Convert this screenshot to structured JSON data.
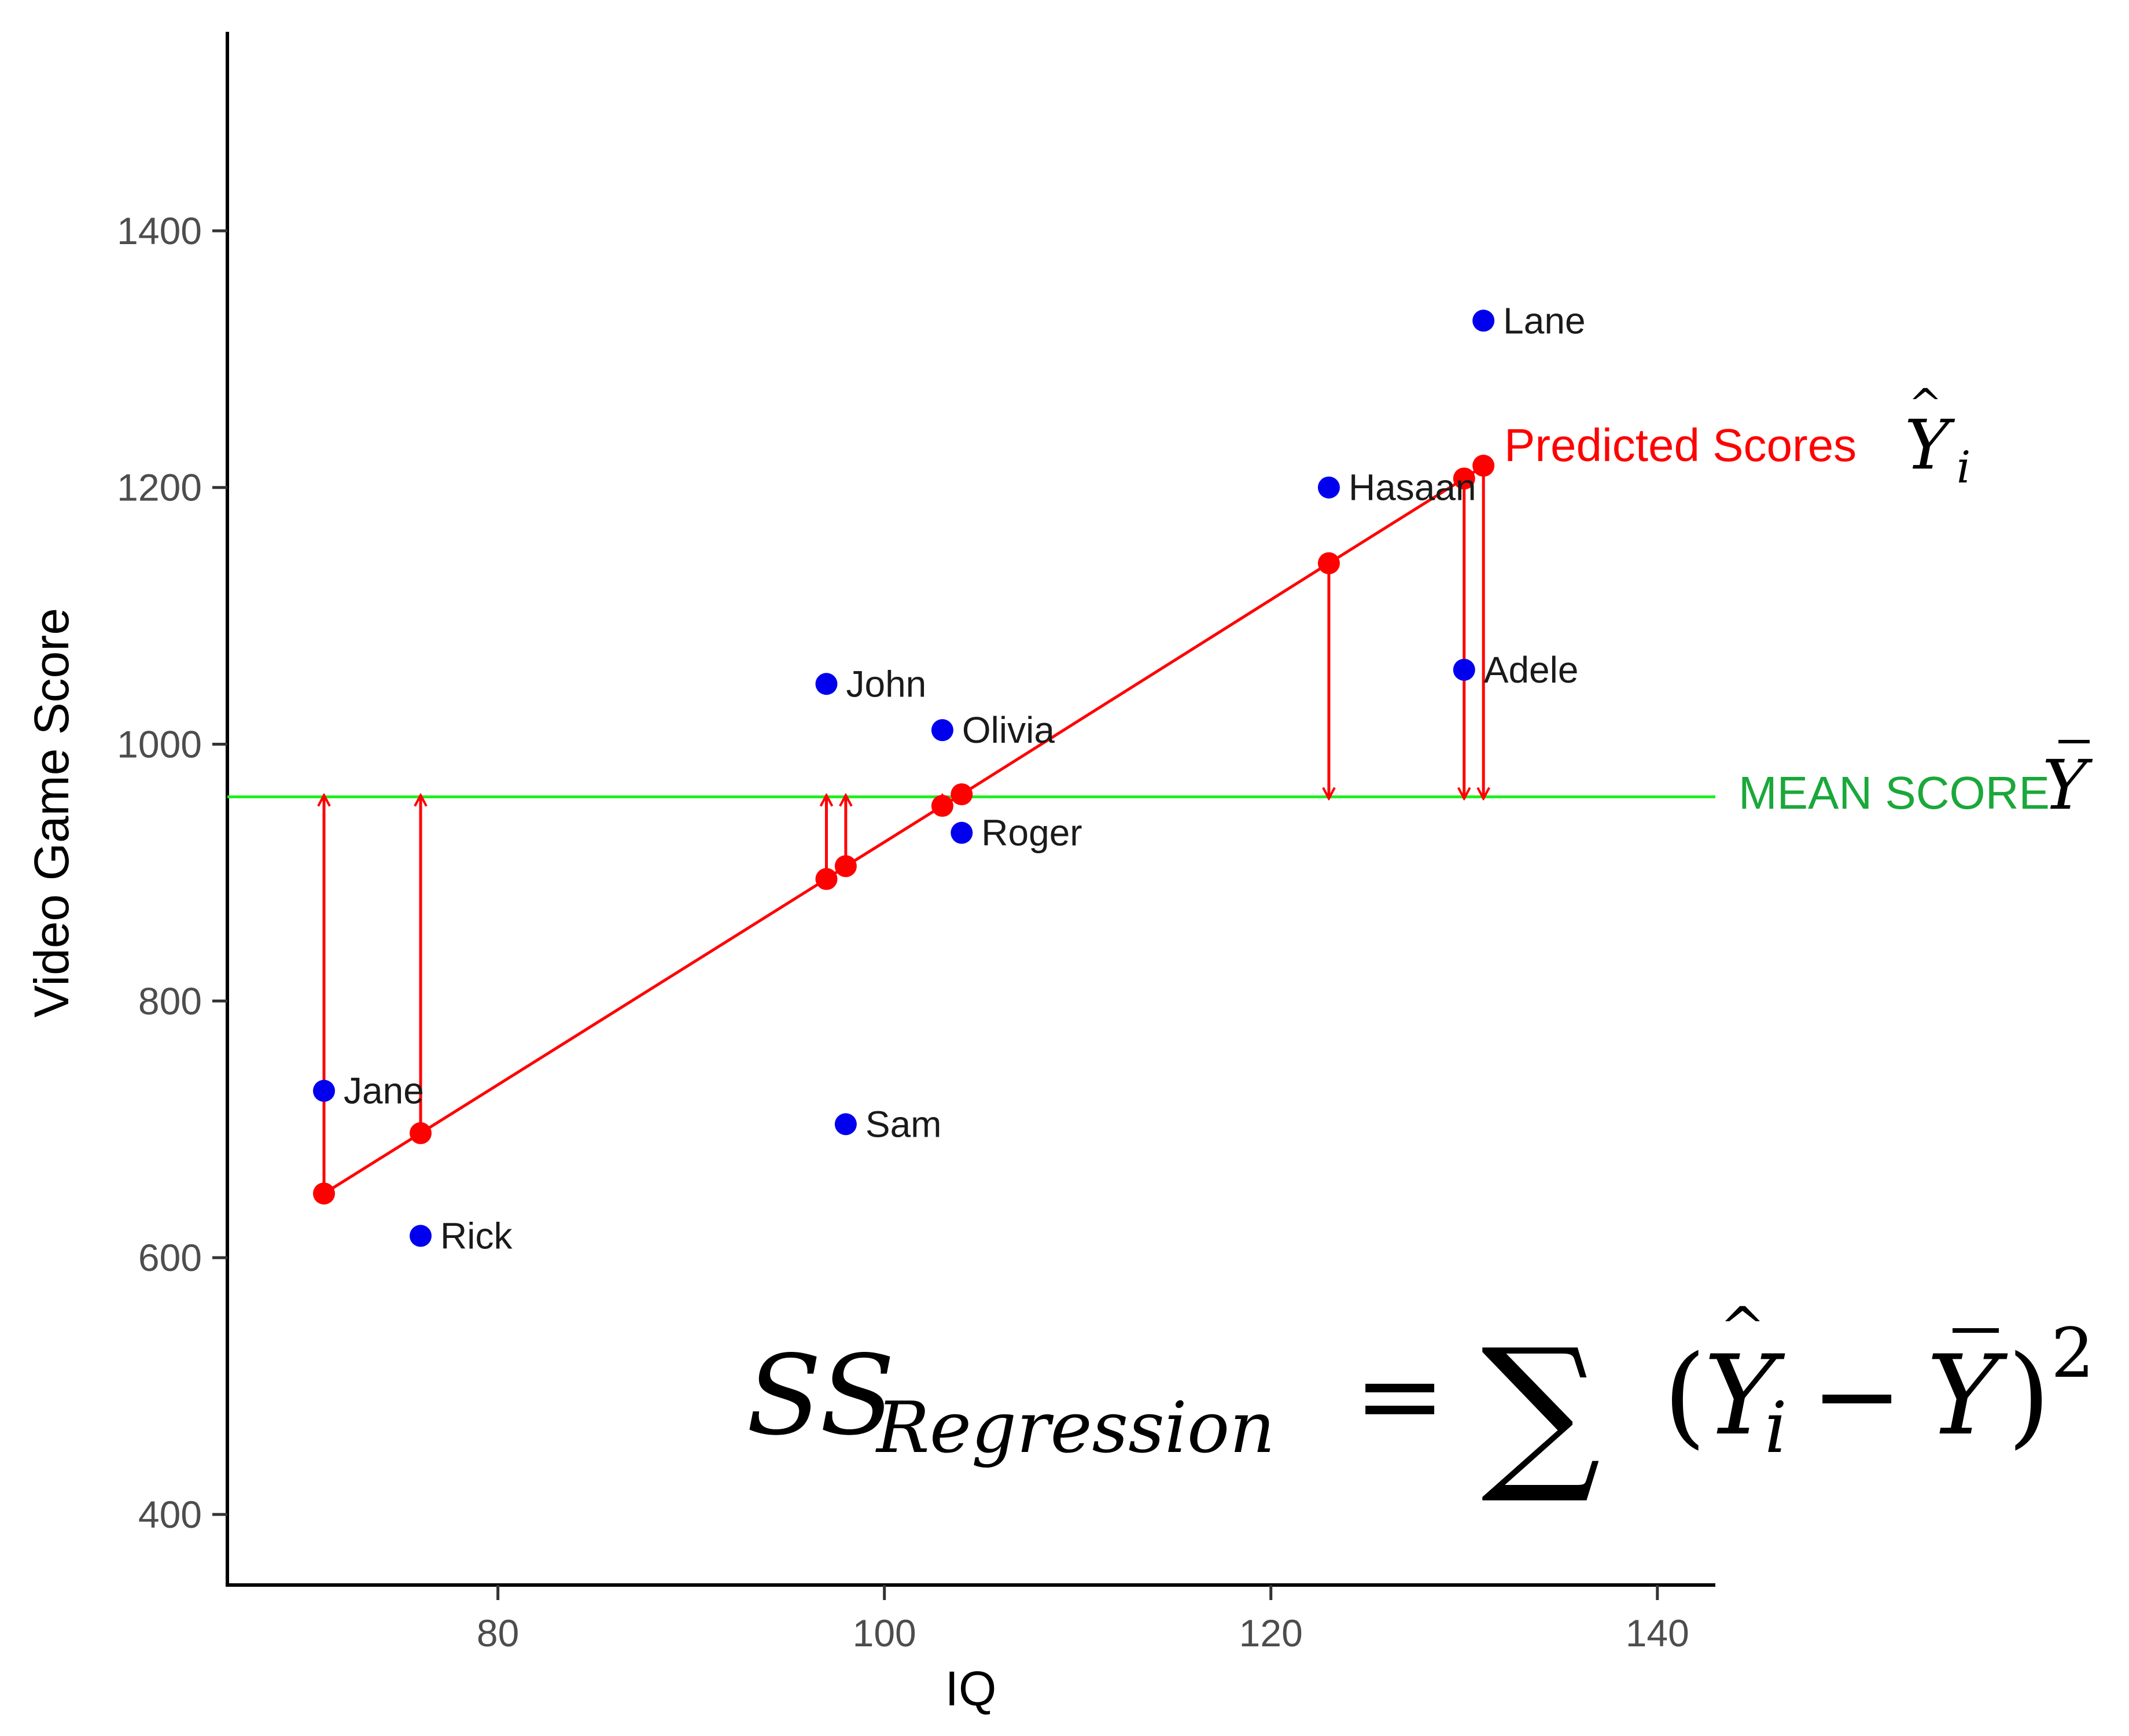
{
  "chart_data": {
    "type": "scatter",
    "xlabel": "IQ",
    "ylabel": "Video Game Score",
    "xlim": [
      66,
      143
    ],
    "ylim": [
      345,
      1555
    ],
    "x_ticks": [
      80,
      100,
      120,
      140
    ],
    "y_ticks": [
      400,
      600,
      800,
      1000,
      1200,
      1400
    ],
    "grid": false,
    "points": [
      {
        "name": "Jane",
        "x": 71,
        "y": 730,
        "predicted": 650
      },
      {
        "name": "Rick",
        "x": 76,
        "y": 617,
        "predicted": 697
      },
      {
        "name": "John",
        "x": 97,
        "y": 1047,
        "predicted": 895
      },
      {
        "name": "Sam",
        "x": 98,
        "y": 704,
        "predicted": 905
      },
      {
        "name": "Olivia",
        "x": 103,
        "y": 1011,
        "predicted": 952
      },
      {
        "name": "Roger",
        "x": 104,
        "y": 931,
        "predicted": 961
      },
      {
        "name": "Hasaan",
        "x": 123,
        "y": 1200,
        "predicted": 1141
      },
      {
        "name": "Adele",
        "x": 130,
        "y": 1058,
        "predicted": 1207
      },
      {
        "name": "Lane",
        "x": 131,
        "y": 1330,
        "predicted": 1217
      }
    ],
    "mean_score": 959,
    "colors": {
      "observed": "#0000ee",
      "predicted": "#ff0000",
      "mean_line": "#22ee22",
      "mean_label": "#1aa83a",
      "axis": "#000000"
    },
    "annotations": {
      "predicted_label": "Predicted Scores",
      "mean_label": "MEAN SCORE",
      "formula": "SS_Regression = Σ(Ŷi − Ȳ)²"
    }
  }
}
